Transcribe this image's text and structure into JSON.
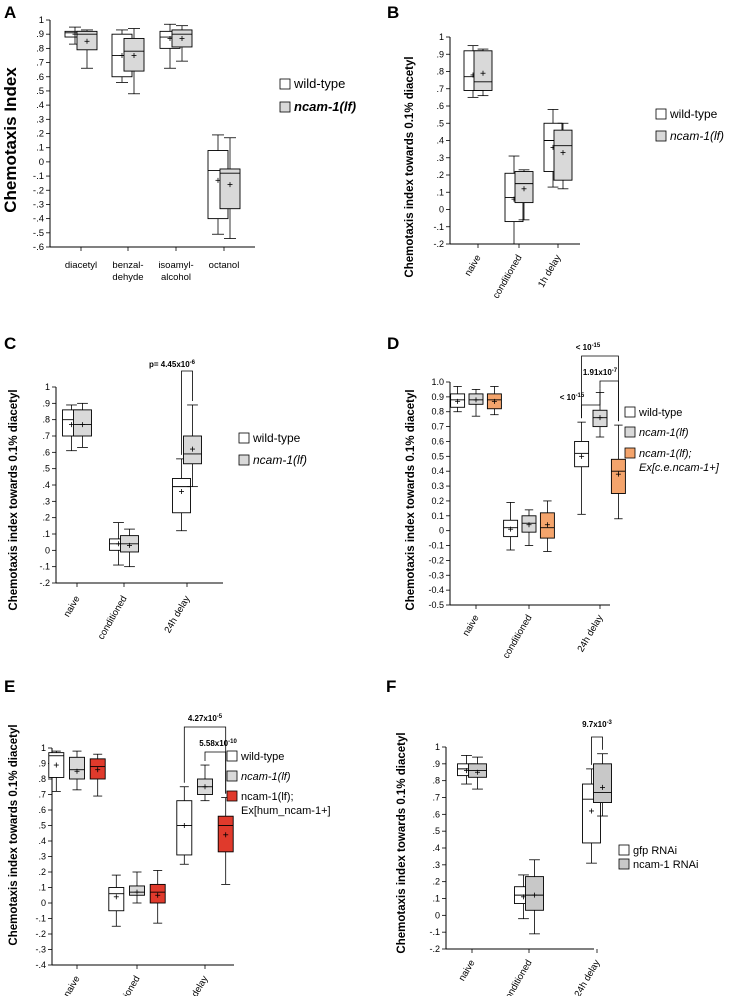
{
  "chart_data": [
    {
      "panel": "A",
      "type": "box",
      "ylabel": "Chemotaxis Index",
      "ylim": [
        -0.6,
        1.0
      ],
      "yticks": [
        -0.6,
        -0.5,
        -0.4,
        -0.3,
        -0.2,
        -0.1,
        0,
        0.1,
        0.2,
        0.3,
        0.4,
        0.5,
        0.6,
        0.7,
        0.8,
        0.9,
        1.0
      ],
      "yfmt": "trim",
      "categories": [
        [
          "diacetyl"
        ],
        [
          "benzal-",
          "dehyde"
        ],
        [
          "isoamyl-",
          "alcohol"
        ],
        [
          "octanol"
        ]
      ],
      "series": [
        {
          "name": "wild-type",
          "color": "#ffffff",
          "boxes": [
            [
              0.83,
              0.88,
              0.91,
              0.92,
              0.95,
              0.9
            ],
            [
              0.56,
              0.6,
              0.75,
              0.9,
              0.93,
              0.75
            ],
            [
              0.66,
              0.8,
              0.88,
              0.92,
              0.97,
              0.87
            ],
            [
              -0.51,
              -0.4,
              -0.06,
              0.08,
              0.19,
              -0.13
            ]
          ]
        },
        {
          "name": "ncam-1(lf)",
          "color": "#d9d9d9",
          "boxes": [
            [
              0.66,
              0.79,
              0.9,
              0.92,
              0.93,
              0.85
            ],
            [
              0.48,
              0.64,
              0.78,
              0.87,
              0.94,
              0.75
            ],
            [
              0.71,
              0.81,
              0.9,
              0.93,
              0.96,
              0.87
            ],
            [
              -0.54,
              -0.33,
              -0.08,
              -0.05,
              0.17,
              -0.16
            ]
          ]
        }
      ],
      "legend": [
        "wild-type",
        "ncam-1(lf)"
      ],
      "comparisons": []
    },
    {
      "panel": "B",
      "type": "box",
      "ylabel": "Chemotaxis index towards 0.1% diacetyl",
      "ylim": [
        -0.2,
        1.0
      ],
      "yticks": [
        -0.2,
        -0.1,
        0,
        0.1,
        0.2,
        0.3,
        0.4,
        0.5,
        0.6,
        0.7,
        0.8,
        0.9,
        1.0
      ],
      "yfmt": "trim",
      "categories": [
        [
          "naive"
        ],
        [
          "conditioned"
        ],
        [
          "1h delay"
        ]
      ],
      "series": [
        {
          "name": "wild-type",
          "color": "#ffffff",
          "boxes": [
            [
              0.65,
              0.69,
              0.77,
              0.92,
              0.95,
              0.78
            ],
            [
              -0.2,
              -0.07,
              0.07,
              0.21,
              0.31,
              0.06
            ],
            [
              0.13,
              0.22,
              0.4,
              0.5,
              0.58,
              0.36
            ]
          ]
        },
        {
          "name": "ncam-1(lf)",
          "color": "#d9d9d9",
          "boxes": [
            [
              0.66,
              0.69,
              0.74,
              0.92,
              0.93,
              0.79
            ],
            [
              -0.06,
              0.04,
              0.15,
              0.22,
              0.23,
              0.12
            ],
            [
              0.12,
              0.17,
              0.37,
              0.46,
              0.5,
              0.33
            ]
          ]
        }
      ],
      "legend": [
        "wild-type",
        "ncam-1(lf)"
      ],
      "comparisons": []
    },
    {
      "panel": "C",
      "type": "box",
      "ylabel": "Chemotaxis index towards 0.1% diacetyl",
      "ylim": [
        -0.2,
        1.0
      ],
      "yticks": [
        -0.2,
        -0.1,
        0,
        0.1,
        0.2,
        0.3,
        0.4,
        0.5,
        0.6,
        0.7,
        0.8,
        0.9,
        1.0
      ],
      "yfmt": "trim",
      "categories": [
        [
          "naive"
        ],
        [
          "conditioned"
        ],
        [
          "24h delay"
        ]
      ],
      "series": [
        {
          "name": "wild-type",
          "color": "#ffffff",
          "boxes": [
            [
              0.61,
              0.7,
              0.8,
              0.86,
              0.89,
              0.77
            ],
            [
              -0.09,
              0.0,
              0.04,
              0.07,
              0.17,
              0.04
            ],
            [
              0.12,
              0.23,
              0.39,
              0.44,
              0.56,
              0.36
            ]
          ]
        },
        {
          "name": "ncam-1(lf)",
          "color": "#d9d9d9",
          "boxes": [
            [
              0.63,
              0.7,
              0.77,
              0.86,
              0.9,
              0.77
            ],
            [
              -0.1,
              -0.01,
              0.04,
              0.09,
              0.13,
              0.03
            ],
            [
              0.39,
              0.53,
              0.59,
              0.7,
              0.89,
              0.62
            ]
          ]
        }
      ],
      "legend": [
        "wild-type",
        "ncam-1(lf)"
      ],
      "comparisons": [
        {
          "label": "p= 4.45x10",
          "exp": "-6"
        }
      ]
    },
    {
      "panel": "D",
      "type": "box",
      "ylabel": "Chemotaxis index towards 0.1% diacetyl",
      "ylim": [
        -0.5,
        1.0
      ],
      "yticks": [
        -0.5,
        -0.4,
        -0.3,
        -0.2,
        -0.1,
        0,
        0.1,
        0.2,
        0.3,
        0.4,
        0.5,
        0.6,
        0.7,
        0.8,
        0.9,
        1.0
      ],
      "yfmt": "fixed1",
      "categories": [
        [
          "naive"
        ],
        [
          "conditioned"
        ],
        [
          "24h delay"
        ]
      ],
      "series": [
        {
          "name": "wild-type",
          "color": "#ffffff",
          "boxes": [
            [
              0.8,
              0.83,
              0.88,
              0.92,
              0.97,
              0.87
            ],
            [
              -0.13,
              -0.04,
              0.02,
              0.07,
              0.19,
              0.01
            ],
            [
              0.11,
              0.43,
              0.52,
              0.6,
              0.73,
              0.5
            ]
          ]
        },
        {
          "name": "ncam-1(lf)",
          "color": "#d9d9d9",
          "boxes": [
            [
              0.77,
              0.85,
              0.88,
              0.92,
              0.95,
              0.88
            ],
            [
              -0.1,
              -0.01,
              0.05,
              0.1,
              0.14,
              0.04
            ],
            [
              0.63,
              0.7,
              0.76,
              0.81,
              0.93,
              0.76
            ]
          ]
        },
        {
          "name": "ncam-1(lf); Ex[c.e.ncam-1+]",
          "color": "#f4a46c",
          "boxes": [
            [
              0.78,
              0.82,
              0.88,
              0.92,
              0.97,
              0.87
            ],
            [
              -0.14,
              -0.05,
              0.02,
              0.12,
              0.2,
              0.04
            ],
            [
              0.08,
              0.25,
              0.4,
              0.48,
              0.71,
              0.38
            ]
          ]
        }
      ],
      "legend": [
        "wild-type",
        "ncam-1(lf)",
        "ncam-1(lf);",
        "Ex[c.e.ncam-1+]"
      ],
      "comparisons": [
        {
          "label": "< 10",
          "exp": "-15"
        },
        {
          "label": "1.91x10",
          "exp": "-7"
        },
        {
          "label": "< 10",
          "exp": "-15"
        }
      ]
    },
    {
      "panel": "E",
      "type": "box",
      "ylabel": "Chemotaxis index towards 0.1% diacetyl",
      "ylim": [
        -0.4,
        1.0
      ],
      "yticks": [
        -0.4,
        -0.3,
        -0.2,
        -0.1,
        0,
        0.1,
        0.2,
        0.3,
        0.4,
        0.5,
        0.6,
        0.7,
        0.8,
        0.9,
        1.0
      ],
      "yfmt": "trim",
      "categories": [
        [
          "naive"
        ],
        [
          "conditioned"
        ],
        [
          "24h delay"
        ]
      ],
      "series": [
        {
          "name": "wild-type",
          "color": "#ffffff",
          "boxes": [
            [
              0.72,
              0.81,
              0.95,
              0.97,
              0.98,
              0.89
            ],
            [
              -0.15,
              -0.05,
              0.06,
              0.1,
              0.18,
              0.04
            ],
            [
              0.25,
              0.31,
              0.5,
              0.66,
              0.75,
              0.5
            ]
          ]
        },
        {
          "name": "ncam-1(lf)",
          "color": "#d9d9d9",
          "boxes": [
            [
              0.73,
              0.8,
              0.86,
              0.94,
              0.98,
              0.85
            ],
            [
              0.0,
              0.05,
              0.07,
              0.11,
              0.2,
              0.07
            ],
            [
              0.66,
              0.7,
              0.75,
              0.8,
              0.89,
              0.75
            ]
          ]
        },
        {
          "name": "ncam-1(lf); Ex[hum_ncam-1+]",
          "color": "#e03a2c",
          "boxes": [
            [
              0.69,
              0.8,
              0.88,
              0.93,
              0.96,
              0.86
            ],
            [
              -0.13,
              0.0,
              0.07,
              0.12,
              0.21,
              0.05
            ],
            [
              0.12,
              0.33,
              0.5,
              0.56,
              0.68,
              0.44
            ]
          ]
        }
      ],
      "legend": [
        "wild-type",
        "ncam-1(lf)",
        "ncam-1(lf);",
        "Ex[hum_ncam-1+]"
      ],
      "comparisons": [
        {
          "label": "4.27x10",
          "exp": "-5"
        },
        {
          "label": "5.58x10",
          "exp": "-10"
        }
      ]
    },
    {
      "panel": "F",
      "type": "box",
      "ylabel": "Chemotaxis index towards 0.1% diacetyl",
      "ylim": [
        -0.2,
        1.0
      ],
      "yticks": [
        -0.2,
        -0.1,
        0,
        0.1,
        0.2,
        0.3,
        0.4,
        0.5,
        0.6,
        0.7,
        0.8,
        0.9,
        1.0
      ],
      "yfmt": "trim",
      "categories": [
        [
          "naive"
        ],
        [
          "conditioned"
        ],
        [
          "24h delay"
        ]
      ],
      "series": [
        {
          "name": "gfp RNAi",
          "color": "#ffffff",
          "boxes": [
            [
              0.78,
              0.83,
              0.87,
              0.9,
              0.95,
              0.86
            ],
            [
              -0.02,
              0.07,
              0.12,
              0.17,
              0.24,
              0.11
            ],
            [
              0.31,
              0.43,
              0.69,
              0.78,
              0.87,
              0.62
            ]
          ]
        },
        {
          "name": "ncam-1 RNAi",
          "color": "#c8c8c8",
          "boxes": [
            [
              0.75,
              0.82,
              0.86,
              0.9,
              0.94,
              0.85
            ],
            [
              -0.11,
              0.03,
              0.12,
              0.23,
              0.33,
              0.12
            ],
            [
              0.59,
              0.67,
              0.73,
              0.9,
              0.96,
              0.76
            ]
          ]
        }
      ],
      "legend": [
        "gfp RNAi",
        "ncam-1 RNAi"
      ],
      "comparisons": [
        {
          "label": "9.7x10",
          "exp": "-3"
        }
      ]
    }
  ]
}
